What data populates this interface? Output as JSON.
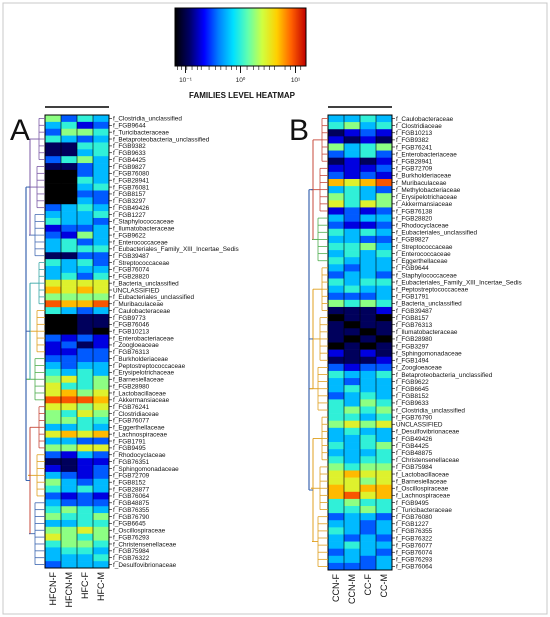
{
  "colorbar": {
    "title": "FAMILIES LEVEL HEATMAP",
    "tick_labels": [
      "10⁻¹",
      "10⁰",
      "10¹"
    ],
    "stops": [
      "#000000",
      "#000066",
      "#0000ff",
      "#0080ff",
      "#00e0ff",
      "#60ffb0",
      "#d0ff40",
      "#ffd000",
      "#ff6000",
      "#c00000"
    ]
  },
  "chart_data": [
    {
      "type": "heatmap",
      "panel_label": "A",
      "columns": [
        "HFCN-F",
        "HFCN-M",
        "HFC-F",
        "HFC-M"
      ],
      "rows": [
        "f_Clostridia_unclassified",
        "f_FGB9644",
        "f_Turicibacteraceae",
        "f_Betaproteobacteria_unclassified",
        "f_FGB9382",
        "f_FGB9633",
        "f_FGB4425",
        "f_FGB9827",
        "f_FGB76080",
        "f_FGB28941",
        "f_FGB76081",
        "f_FGB8157",
        "f_FGB3297",
        "f_FGB49426",
        "f_FGB1227",
        "f_Staphylococcaceae",
        "f_Ilumatobacteraceae",
        "f_FGB9622",
        "f_Enterococcaceae",
        "f_Eubacteriales_Family_XIII_Incertae_Sedis",
        "f_FGB39487",
        "f_Streptococcaceae",
        "f_FGB76074",
        "f_FGB28820",
        "f_Bacteria_unclassified",
        "UNCLASSIFIED",
        "f_Eubacteriales_unclassified",
        "f_Muribaculaceae",
        "f_Caulobacteraceae",
        "f_FGB9773",
        "f_FGB76046",
        "f_FGB10213",
        "f_Enterobacteriaceae",
        "f_Zoogloeaceae",
        "f_FGB76313",
        "f_Burkholderiaceae",
        "f_Peptostreptococcaceae",
        "f_Erysipelotrichaceae",
        "f_Barnesiellaceae",
        "f_FGB28980",
        "f_Lactobacillaceae",
        "f_Akkermansiaceae",
        "f_FGB76241",
        "f_Clostridiaceae",
        "f_FGB76077",
        "f_Eggerthellaceae",
        "f_Lachnospiraceae",
        "f_FGB1791",
        "f_FGB9495",
        "f_Rhodocyclaceae",
        "f_FGB76351",
        "f_Sphingomonadaceae",
        "f_FGB72709",
        "f_FGB8152",
        "f_FGB28877",
        "f_FGB76064",
        "f_FGB48875",
        "f_FGB76355",
        "f_FGB76790",
        "f_FGB6645",
        "f_Oscillospiraceae",
        "f_FGB76293",
        "f_Christensenellaceae",
        "f_FGB75984",
        "f_FGB76322",
        "f_Desulfovibrionaceae"
      ],
      "values": [
        [
          0.6,
          0.3,
          0.5,
          0.4
        ],
        [
          0.4,
          0.5,
          0.2,
          0.3
        ],
        [
          0.3,
          0.6,
          0.6,
          0.5
        ],
        [
          0.5,
          0.4,
          0.3,
          0.4
        ],
        [
          0.1,
          0.1,
          0.5,
          0.5
        ],
        [
          0.1,
          0.1,
          0.4,
          0.5
        ],
        [
          0.3,
          0.5,
          0.6,
          0.4
        ],
        [
          0.1,
          0.1,
          0.3,
          0.4
        ],
        [
          0.0,
          0.0,
          0.3,
          0.4
        ],
        [
          0.0,
          0.0,
          0.5,
          0.4
        ],
        [
          0.0,
          0.0,
          0.4,
          0.5
        ],
        [
          0.0,
          0.0,
          0.3,
          0.3
        ],
        [
          0.0,
          0.0,
          0.4,
          0.3
        ],
        [
          0.3,
          0.4,
          0.5,
          0.4
        ],
        [
          0.4,
          0.4,
          0.4,
          0.5
        ],
        [
          0.5,
          0.4,
          0.4,
          0.3
        ],
        [
          0.2,
          0.3,
          0.3,
          0.4
        ],
        [
          0.3,
          0.2,
          0.6,
          0.4
        ],
        [
          0.4,
          0.5,
          0.3,
          0.4
        ],
        [
          0.4,
          0.5,
          0.5,
          0.5
        ],
        [
          0.1,
          0.1,
          0.3,
          0.3
        ],
        [
          0.5,
          0.4,
          0.5,
          0.3
        ],
        [
          0.4,
          0.4,
          0.4,
          0.4
        ],
        [
          0.4,
          0.5,
          0.3,
          0.5
        ],
        [
          0.7,
          0.7,
          0.7,
          0.7
        ],
        [
          0.8,
          0.7,
          0.8,
          0.7
        ],
        [
          0.6,
          0.6,
          0.6,
          0.6
        ],
        [
          0.9,
          0.8,
          0.8,
          0.9
        ],
        [
          0.5,
          0.4,
          0.3,
          0.4
        ],
        [
          0.0,
          0.0,
          0.1,
          0.1
        ],
        [
          0.0,
          0.0,
          0.1,
          0.1
        ],
        [
          0.0,
          0.0,
          0.1,
          0.0
        ],
        [
          0.3,
          0.2,
          0.3,
          0.2
        ],
        [
          0.2,
          0.3,
          0.1,
          0.2
        ],
        [
          0.2,
          0.2,
          0.3,
          0.3
        ],
        [
          0.3,
          0.3,
          0.3,
          0.3
        ],
        [
          0.4,
          0.3,
          0.4,
          0.4
        ],
        [
          0.5,
          0.4,
          0.5,
          0.4
        ],
        [
          0.6,
          0.7,
          0.5,
          0.6
        ],
        [
          0.7,
          0.5,
          0.5,
          0.6
        ],
        [
          0.7,
          0.8,
          0.6,
          0.7
        ],
        [
          0.9,
          0.9,
          0.9,
          0.8
        ],
        [
          0.7,
          0.7,
          0.6,
          0.7
        ],
        [
          0.6,
          0.5,
          0.7,
          0.6
        ],
        [
          0.6,
          0.6,
          0.5,
          0.5
        ],
        [
          0.4,
          0.4,
          0.5,
          0.4
        ],
        [
          0.7,
          0.8,
          0.7,
          0.8
        ],
        [
          0.4,
          0.4,
          0.3,
          0.3
        ],
        [
          0.6,
          0.6,
          0.7,
          0.7
        ],
        [
          0.3,
          0.2,
          0.4,
          0.3
        ],
        [
          0.1,
          0.1,
          0.2,
          0.2
        ],
        [
          0.2,
          0.1,
          0.2,
          0.3
        ],
        [
          0.4,
          0.3,
          0.2,
          0.3
        ],
        [
          0.6,
          0.4,
          0.3,
          0.4
        ],
        [
          0.5,
          0.4,
          0.5,
          0.4
        ],
        [
          0.3,
          0.2,
          0.3,
          0.2
        ],
        [
          0.4,
          0.3,
          0.3,
          0.3
        ],
        [
          0.5,
          0.6,
          0.5,
          0.4
        ],
        [
          0.6,
          0.5,
          0.5,
          0.6
        ],
        [
          0.4,
          0.4,
          0.5,
          0.5
        ],
        [
          0.6,
          0.6,
          0.7,
          0.6
        ],
        [
          0.7,
          0.6,
          0.5,
          0.6
        ],
        [
          0.5,
          0.6,
          0.6,
          0.5
        ],
        [
          0.4,
          0.5,
          0.5,
          0.4
        ],
        [
          0.4,
          0.4,
          0.4,
          0.5
        ],
        [
          0.3,
          0.4,
          0.4,
          0.4
        ]
      ]
    },
    {
      "type": "heatmap",
      "panel_label": "B",
      "columns": [
        "CCN-F",
        "CCN-M",
        "CC-F",
        "CC-M"
      ],
      "rows": [
        "f_Caulobacteraceae",
        "f_Clostridiaceae",
        "f_FGB10213",
        "f_FGB9382",
        "f_FGB76241",
        "f_Enterobacteriaceae",
        "f_FGB28941",
        "f_FGB72709",
        "f_Burkholderiaceae",
        "f_Muribaculaceae",
        "f_Methylobacteriaceae",
        "f_Erysipelotrichaceae",
        "f_Akkermansiaceae",
        "f_FGB76138",
        "f_FGB28820",
        "f_Rhodocyclaceae",
        "f_Eubacteriales_unclassified",
        "f_FGB9827",
        "f_Streptococcaceae",
        "f_Enterococcaceae",
        "f_Eggerthellaceae",
        "f_FGB9644",
        "f_Staphylococcaceae",
        "f_Eubacteriales_Family_XIII_Incertae_Sedis",
        "f_Peptostreptococcaceae",
        "f_FGB1791",
        "f_Bacteria_unclassified",
        "f_FGB39487",
        "f_FGB8157",
        "f_FGB76313",
        "f_Ilumatobacteraceae",
        "f_FGB28980",
        "f_FGB3297",
        "f_Sphingomonadaceae",
        "f_FGB1494",
        "f_Zoogloeaceae",
        "f_Betaproteobacteria_unclassified",
        "f_FGB9622",
        "f_FGB6645",
        "f_FGB8152",
        "f_FGB9633",
        "f_Clostridia_unclassified",
        "f_FGB76790",
        "UNCLASSIFIED",
        "f_Desulfovibrionaceae",
        "f_FGB49426",
        "f_FGB4425",
        "f_FGB48875",
        "f_Christensenellaceae",
        "f_FGB75984",
        "f_Lactobacillaceae",
        "f_Barnesiellaceae",
        "f_Oscillospiraceae",
        "f_Lachnospiraceae",
        "f_FGB9495",
        "f_Turicibacteraceae",
        "f_FGB76080",
        "f_FGB1227",
        "f_FGB76355",
        "f_FGB76322",
        "f_FGB76077",
        "f_FGB76074",
        "f_FGB76293",
        "f_FGB76064"
      ],
      "values": [
        [
          0.4,
          0.4,
          0.5,
          0.4
        ],
        [
          0.5,
          0.6,
          0.4,
          0.5
        ],
        [
          0.1,
          0.2,
          0.3,
          0.2
        ],
        [
          0.2,
          0.1,
          0.2,
          0.1
        ],
        [
          0.6,
          0.4,
          0.5,
          0.6
        ],
        [
          0.3,
          0.4,
          0.5,
          0.3
        ],
        [
          0.1,
          0.2,
          0.1,
          0.2
        ],
        [
          0.2,
          0.2,
          0.2,
          0.3
        ],
        [
          0.3,
          0.2,
          0.3,
          0.2
        ],
        [
          0.8,
          0.7,
          0.8,
          0.9
        ],
        [
          0.4,
          0.5,
          0.4,
          0.3
        ],
        [
          0.6,
          0.5,
          0.4,
          0.6
        ],
        [
          0.7,
          0.5,
          0.7,
          0.6
        ],
        [
          0.2,
          0.3,
          0.2,
          0.3
        ],
        [
          0.4,
          0.3,
          0.4,
          0.4
        ],
        [
          0.3,
          0.2,
          0.2,
          0.3
        ],
        [
          0.5,
          0.4,
          0.5,
          0.4
        ],
        [
          0.4,
          0.4,
          0.3,
          0.3
        ],
        [
          0.5,
          0.5,
          0.6,
          0.4
        ],
        [
          0.4,
          0.5,
          0.4,
          0.5
        ],
        [
          0.5,
          0.4,
          0.4,
          0.4
        ],
        [
          0.4,
          0.3,
          0.4,
          0.4
        ],
        [
          0.3,
          0.4,
          0.4,
          0.3
        ],
        [
          0.5,
          0.4,
          0.5,
          0.5
        ],
        [
          0.4,
          0.5,
          0.4,
          0.4
        ],
        [
          0.3,
          0.3,
          0.3,
          0.4
        ],
        [
          0.6,
          0.5,
          0.6,
          0.5
        ],
        [
          0.1,
          0.1,
          0.1,
          0.2
        ],
        [
          0.0,
          0.1,
          0.1,
          0.0
        ],
        [
          0.1,
          0.0,
          0.1,
          0.1
        ],
        [
          0.1,
          0.1,
          0.0,
          0.1
        ],
        [
          0.1,
          0.0,
          0.1,
          0.0
        ],
        [
          0.0,
          0.1,
          0.0,
          0.1
        ],
        [
          0.2,
          0.1,
          0.2,
          0.1
        ],
        [
          0.1,
          0.1,
          0.1,
          0.2
        ],
        [
          0.3,
          0.2,
          0.3,
          0.3
        ],
        [
          0.5,
          0.4,
          0.4,
          0.5
        ],
        [
          0.4,
          0.3,
          0.4,
          0.4
        ],
        [
          0.4,
          0.5,
          0.4,
          0.4
        ],
        [
          0.3,
          0.4,
          0.5,
          0.4
        ],
        [
          0.5,
          0.4,
          0.6,
          0.5
        ],
        [
          0.5,
          0.6,
          0.5,
          0.6
        ],
        [
          0.5,
          0.5,
          0.4,
          0.5
        ],
        [
          0.6,
          0.7,
          0.6,
          0.7
        ],
        [
          0.4,
          0.5,
          0.4,
          0.4
        ],
        [
          0.4,
          0.4,
          0.5,
          0.4
        ],
        [
          0.5,
          0.4,
          0.5,
          0.6
        ],
        [
          0.4,
          0.4,
          0.4,
          0.5
        ],
        [
          0.5,
          0.4,
          0.5,
          0.5
        ],
        [
          0.6,
          0.5,
          0.6,
          0.6
        ],
        [
          0.7,
          0.8,
          0.7,
          0.7
        ],
        [
          0.7,
          0.7,
          0.6,
          0.7
        ],
        [
          0.8,
          0.7,
          0.8,
          0.8
        ],
        [
          0.8,
          0.9,
          0.7,
          0.8
        ],
        [
          0.5,
          0.6,
          0.5,
          0.5
        ],
        [
          0.5,
          0.5,
          0.6,
          0.5
        ],
        [
          0.3,
          0.4,
          0.4,
          0.3
        ],
        [
          0.4,
          0.4,
          0.3,
          0.4
        ],
        [
          0.5,
          0.4,
          0.3,
          0.4
        ],
        [
          0.4,
          0.3,
          0.4,
          0.3
        ],
        [
          0.4,
          0.5,
          0.4,
          0.4
        ],
        [
          0.3,
          0.4,
          0.4,
          0.3
        ],
        [
          0.4,
          0.4,
          0.3,
          0.4
        ],
        [
          0.3,
          0.3,
          0.3,
          0.4
        ]
      ]
    }
  ]
}
